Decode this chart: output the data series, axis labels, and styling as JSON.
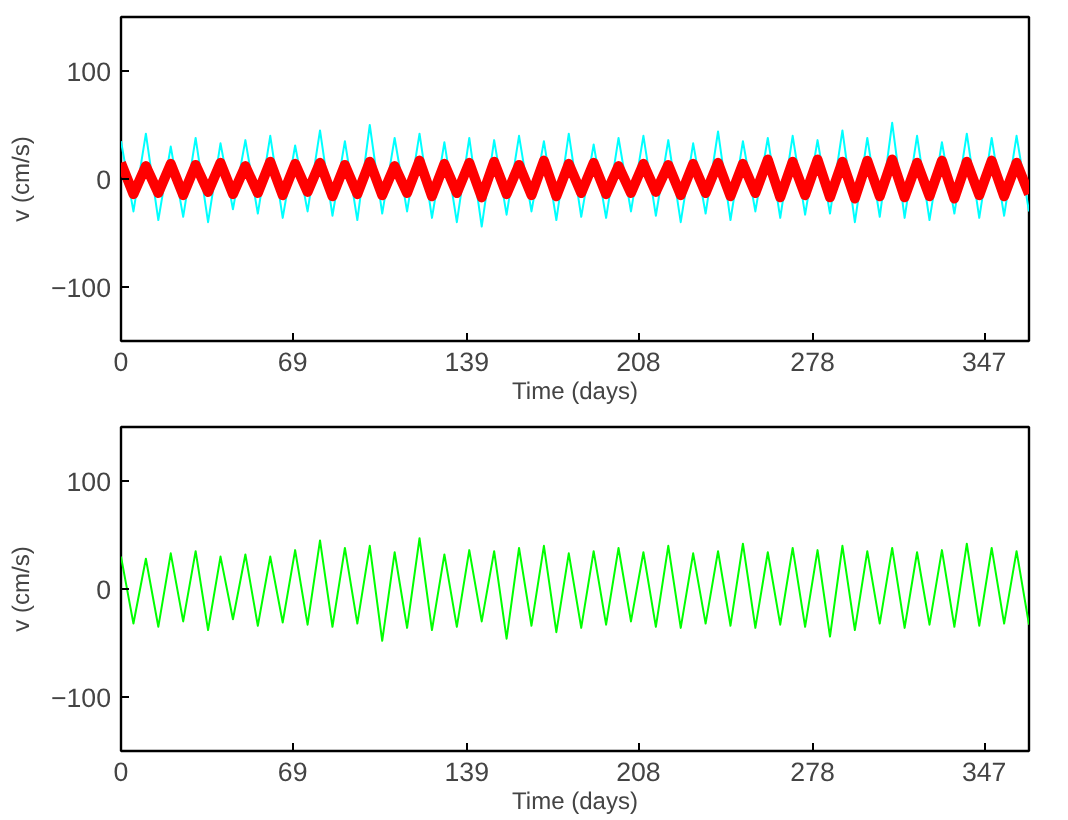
{
  "chart_data": [
    {
      "type": "line",
      "xlabel": "Time (days)",
      "ylabel": "v (cm/s)",
      "x": [
        0,
        5,
        10,
        15,
        20,
        25,
        30,
        35,
        40,
        45,
        50,
        55,
        60,
        65,
        70,
        75,
        80,
        85,
        90,
        95,
        100,
        105,
        110,
        115,
        120,
        125,
        130,
        135,
        140,
        145,
        150,
        155,
        160,
        165,
        170,
        175,
        180,
        185,
        190,
        195,
        200,
        205,
        210,
        215,
        220,
        225,
        230,
        235,
        240,
        245,
        250,
        255,
        260,
        265,
        270,
        275,
        280,
        285,
        290,
        295,
        300,
        305,
        310,
        315,
        320,
        325,
        330,
        335,
        340,
        345,
        350,
        355,
        360,
        365
      ],
      "series": [
        {
          "color": "#00ffff",
          "values": [
            35,
            -30,
            42,
            -38,
            30,
            -35,
            38,
            -40,
            33,
            -28,
            36,
            -32,
            40,
            -36,
            31,
            -30,
            45,
            -34,
            35,
            -38,
            50,
            -32,
            38,
            -30,
            42,
            -36,
            34,
            -40,
            38,
            -44,
            36,
            -33,
            40,
            -30,
            35,
            -38,
            42,
            -35,
            32,
            -36,
            38,
            -30,
            40,
            -34,
            36,
            -40,
            33,
            -32,
            44,
            -38,
            35,
            -30,
            38,
            -36,
            40,
            -33,
            36,
            -32,
            45,
            -40,
            38,
            -35,
            52,
            -36,
            40,
            -38,
            34,
            -32,
            42,
            -36,
            38,
            -34,
            40,
            -30
          ]
        },
        {
          "color": "#ff0000",
          "values": [
            15,
            -14,
            12,
            -13,
            14,
            -15,
            13,
            -12,
            15,
            -14,
            12,
            -13,
            16,
            -15,
            14,
            -12,
            15,
            -16,
            13,
            -14,
            16,
            -15,
            12,
            -13,
            17,
            -16,
            14,
            -13,
            15,
            -17,
            16,
            -14,
            13,
            -15,
            17,
            -16,
            14,
            -13,
            15,
            -14,
            12,
            -13,
            14,
            -12,
            13,
            -15,
            14,
            -13,
            15,
            -16,
            14,
            -13,
            18,
            -17,
            16,
            -15,
            18,
            -17,
            16,
            -18,
            17,
            -16,
            18,
            -17,
            15,
            -16,
            17,
            -18,
            16,
            -15,
            17,
            -16,
            15,
            -14
          ]
        }
      ],
      "xlim": [
        0,
        365
      ],
      "ylim": [
        -150,
        150
      ],
      "xticks": [
        0,
        69,
        139,
        208,
        278,
        347
      ],
      "yticks": [
        -100,
        0,
        100
      ],
      "grid": false
    },
    {
      "type": "line",
      "xlabel": "Time (days)",
      "ylabel": "v (cm/s)",
      "x": [
        0,
        5,
        10,
        15,
        20,
        25,
        30,
        35,
        40,
        45,
        50,
        55,
        60,
        65,
        70,
        75,
        80,
        85,
        90,
        95,
        100,
        105,
        110,
        115,
        120,
        125,
        130,
        135,
        140,
        145,
        150,
        155,
        160,
        165,
        170,
        175,
        180,
        185,
        190,
        195,
        200,
        205,
        210,
        215,
        220,
        225,
        230,
        235,
        240,
        245,
        250,
        255,
        260,
        265,
        270,
        275,
        280,
        285,
        290,
        295,
        300,
        305,
        310,
        315,
        320,
        325,
        330,
        335,
        340,
        345,
        350,
        355,
        360,
        365
      ],
      "series": [
        {
          "color": "#00ff00",
          "values": [
            30,
            -32,
            28,
            -35,
            33,
            -30,
            35,
            -38,
            30,
            -28,
            32,
            -34,
            30,
            -31,
            36,
            -33,
            45,
            -35,
            38,
            -32,
            40,
            -48,
            34,
            -36,
            47,
            -38,
            32,
            -35,
            36,
            -30,
            35,
            -46,
            38,
            -34,
            40,
            -40,
            33,
            -36,
            35,
            -33,
            38,
            -30,
            34,
            -35,
            40,
            -36,
            33,
            -32,
            35,
            -34,
            42,
            -36,
            34,
            -33,
            38,
            -35,
            36,
            -44,
            40,
            -38,
            35,
            -32,
            38,
            -36,
            34,
            -33,
            36,
            -35,
            42,
            -34,
            38,
            -32,
            35,
            -33
          ]
        }
      ],
      "xlim": [
        0,
        365
      ],
      "ylim": [
        -150,
        150
      ],
      "xticks": [
        0,
        69,
        139,
        208,
        278,
        347
      ],
      "yticks": [
        -100,
        0,
        100
      ],
      "grid": false
    }
  ]
}
